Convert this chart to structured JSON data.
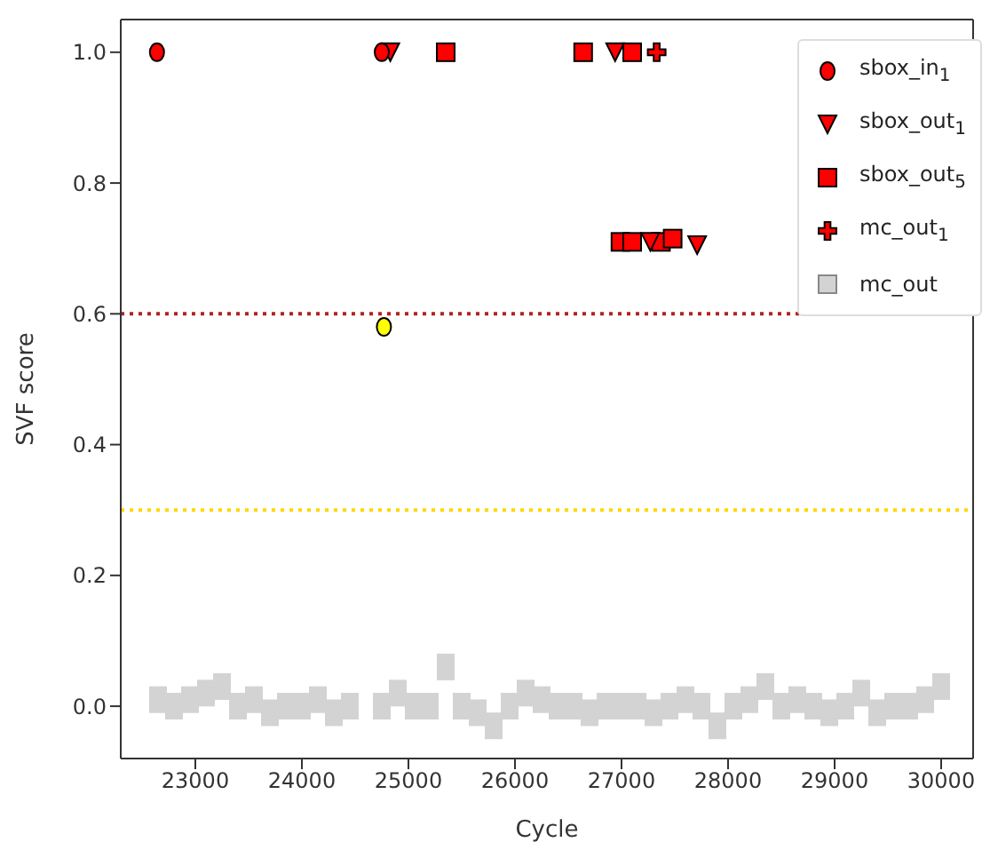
{
  "chart_data": {
    "type": "scatter",
    "xlabel": "Cycle",
    "ylabel": "SVF score",
    "xlim": [
      22300,
      30300
    ],
    "xticks": [
      23000,
      24000,
      25000,
      26000,
      27000,
      28000,
      29000,
      30000
    ],
    "ylim": [
      -0.08,
      1.05
    ],
    "yticks": [
      {
        "value": 0,
        "label": "0.0"
      },
      {
        "value": 0.2,
        "label": "0.2"
      },
      {
        "value": 0.4,
        "label": "0.4"
      },
      {
        "value": 0.6,
        "label": "0.6"
      },
      {
        "value": 0.8,
        "label": "0.8"
      },
      {
        "value": 1,
        "label": "1.0"
      }
    ],
    "legend": "top right",
    "grid": false,
    "ref_lines": [
      {
        "axis": "y",
        "value": 0.6,
        "color": "#b22222",
        "line_style": "dotted"
      },
      {
        "axis": "y",
        "value": 0.3,
        "color": "#ffd700",
        "line_style": "dotted"
      }
    ],
    "series": [
      {
        "name": "sbox_in$_{1}$",
        "color": "#ff0000",
        "colors": [
          "#ff0000",
          "#ff0000",
          "#ffff00"
        ],
        "marker": "circle",
        "x": [
          22640,
          24750,
          24770
        ],
        "values": [
          1.0,
          1.0,
          0.58
        ]
      },
      {
        "name": "sbox_out$_{1}$",
        "color": "#ff0000",
        "marker": "triangle",
        "x": [
          24830,
          26940,
          27270,
          27710
        ],
        "values": [
          1.0,
          1.0,
          0.71,
          0.705
        ]
      },
      {
        "name": "sbox_out$_{5}$",
        "color": "#ff0000",
        "marker": "square",
        "x": [
          25350,
          26640,
          27100,
          26990,
          27100,
          27370,
          27480
        ],
        "values": [
          1.0,
          1.0,
          1.0,
          0.71,
          0.71,
          0.71,
          0.715
        ]
      },
      {
        "name": "mc_out$_{1}$",
        "color": "#ff0000",
        "marker": "cross",
        "x": [
          27330
        ],
        "values": [
          1.0
        ]
      },
      {
        "name": "mc_out",
        "color": "#d3d3d3",
        "marker": "square",
        "x": [
          22650,
          22800,
          22950,
          23100,
          23250,
          23400,
          23550,
          23700,
          23850,
          24000,
          24150,
          24300,
          24450,
          24750,
          24900,
          25050,
          25200,
          25350,
          25500,
          25650,
          25800,
          25950,
          26100,
          26250,
          26400,
          26550,
          26700,
          26850,
          27000,
          27150,
          27300,
          27450,
          27600,
          27750,
          27900,
          28050,
          28200,
          28350,
          28500,
          28650,
          28800,
          28950,
          29100,
          29250,
          29400,
          29550,
          29700,
          29850,
          30000
        ],
        "values": [
          0.01,
          0.0,
          0.01,
          0.02,
          0.03,
          0.0,
          0.01,
          -0.01,
          0.0,
          0.0,
          0.01,
          -0.01,
          0.0,
          0.0,
          0.02,
          0.0,
          0.0,
          0.06,
          0.0,
          -0.01,
          -0.03,
          0.0,
          0.02,
          0.01,
          0.0,
          0.0,
          -0.01,
          0.0,
          0.0,
          0.0,
          -0.01,
          0.0,
          0.01,
          0.0,
          -0.03,
          0.0,
          0.01,
          0.03,
          0.0,
          0.01,
          0.0,
          -0.01,
          0.0,
          0.02,
          -0.01,
          0.0,
          0.0,
          0.01,
          0.03
        ]
      }
    ]
  }
}
